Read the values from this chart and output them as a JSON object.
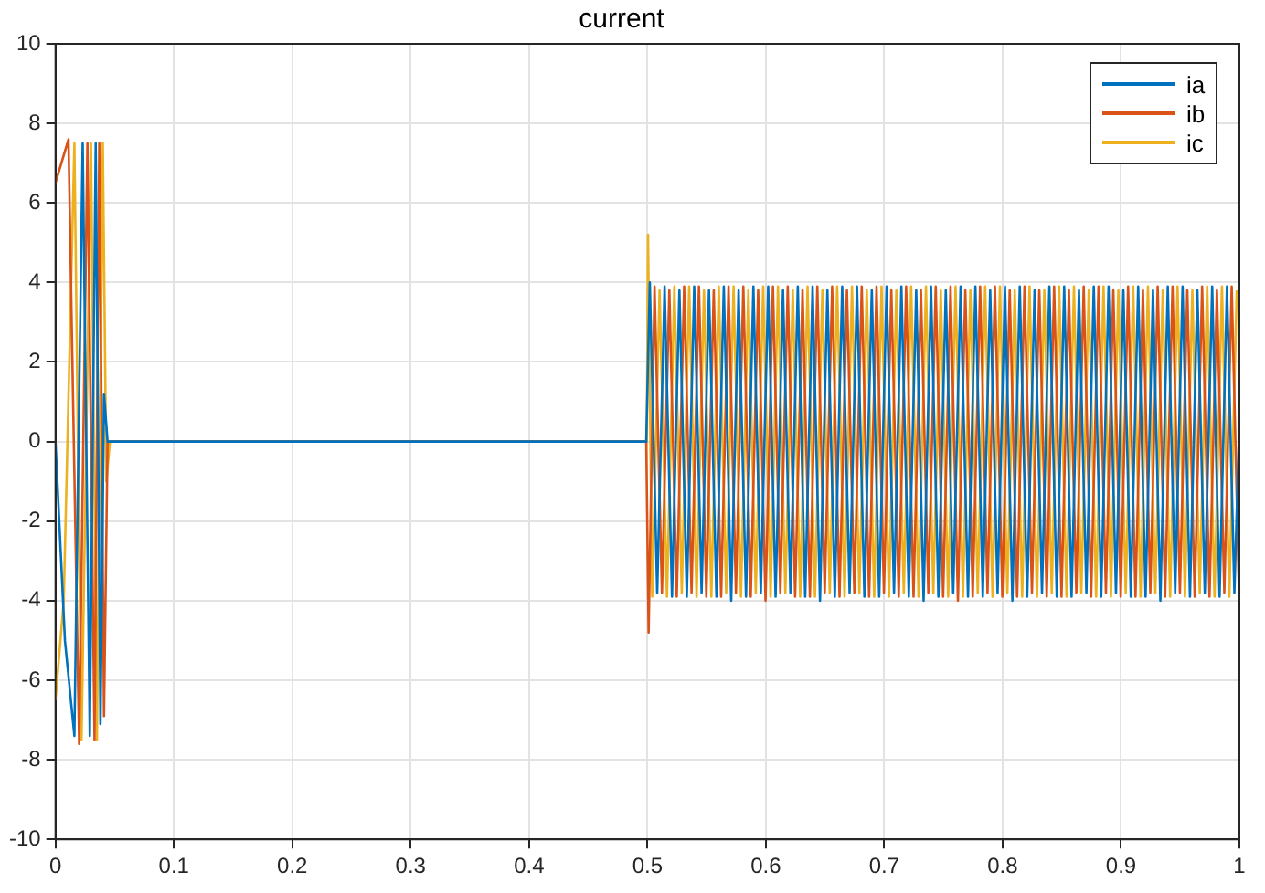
{
  "chart_data": {
    "type": "line",
    "title": "current",
    "xlim": [
      0,
      1
    ],
    "xticks": [
      0,
      0.1,
      0.2,
      0.3,
      0.4,
      0.5,
      0.6,
      0.7,
      0.8,
      0.9,
      1
    ],
    "ylim": [
      -10,
      10
    ],
    "yticks": [
      -10,
      -8,
      -6,
      -4,
      -2,
      0,
      2,
      4,
      6,
      8,
      10
    ],
    "grid": true,
    "legend": "top right",
    "marker": "none",
    "line_style": "solid",
    "series": [
      {
        "name": "ia",
        "color": "#0072bd",
        "x": [
          0,
          0.008,
          0.016,
          0.023,
          0.029,
          0.034,
          0.038,
          0.041,
          0.044,
          0.1,
          0.2,
          0.3,
          0.4,
          0.499,
          0.502,
          0.50825,
          0.5145,
          0.52075,
          0.527,
          0.53325,
          0.5395,
          0.54575,
          0.552,
          0.55825,
          0.5645,
          0.57075,
          0.577,
          0.58325,
          0.5895,
          0.59575,
          0.602,
          0.60825,
          0.6145,
          0.62075,
          0.627,
          0.63325,
          0.6395,
          0.64575,
          0.652,
          0.65825,
          0.6645,
          0.67075,
          0.677,
          0.68325,
          0.6895,
          0.69575,
          0.702,
          0.70825,
          0.7145,
          0.72075,
          0.727,
          0.73325,
          0.7395,
          0.74575,
          0.752,
          0.75825,
          0.7645,
          0.77075,
          0.777,
          0.78325,
          0.7895,
          0.79575,
          0.802,
          0.80825,
          0.8145,
          0.82075,
          0.827,
          0.83325,
          0.8395,
          0.84575,
          0.852,
          0.85825,
          0.8645,
          0.87075,
          0.877,
          0.88325,
          0.8895,
          0.89575,
          0.902,
          0.90825,
          0.9145,
          0.92075,
          0.927,
          0.93325,
          0.9395,
          0.94575,
          0.952,
          0.95825,
          0.9645,
          0.97075,
          0.977,
          0.98325,
          0.9895,
          0.99575,
          1
        ],
        "values": [
          0,
          -5,
          -7.4,
          7.5,
          -7.4,
          7.5,
          -7.1,
          1.2,
          0,
          0,
          0,
          0,
          0,
          0,
          4,
          -3.8,
          3.9,
          -3.9,
          3.8,
          -3.9,
          3.9,
          -3.8,
          3.8,
          -3.9,
          3.9,
          -4,
          3.8,
          -3.9,
          3.9,
          -3.8,
          3.9,
          -3.9,
          3.8,
          -3.8,
          3.9,
          -3.9,
          3.9,
          -4,
          3.8,
          -3.9,
          3.9,
          -3.8,
          3.9,
          -3.9,
          3.8,
          -3.9,
          3.9,
          -3.8,
          3.9,
          -3.9,
          3.8,
          -4,
          3.9,
          -3.9,
          3.8,
          -3.8,
          3.9,
          -3.9,
          3.9,
          -3.9,
          3.8,
          -3.8,
          3.9,
          -4,
          3.9,
          -3.9,
          3.8,
          -3.8,
          3.9,
          -3.9,
          3.9,
          -3.9,
          3.8,
          -3.8,
          3.9,
          -3.9,
          3.9,
          -3.8,
          3.8,
          -3.9,
          3.9,
          -3.9,
          3.8,
          -4,
          3.9,
          -3.8,
          3.9,
          -3.9,
          3.8,
          -3.8,
          3.9,
          -3.9,
          3.9,
          -3.8,
          0.5
        ]
      },
      {
        "name": "ib",
        "color": "#d95319",
        "x": [
          0,
          0.005,
          0.011,
          0.02,
          0.027,
          0.033,
          0.037,
          0.041,
          0.044,
          0.1,
          0.2,
          0.3,
          0.4,
          0.499,
          0.501,
          0.506,
          0.51225,
          0.5185,
          0.52475,
          0.531,
          0.53725,
          0.5435,
          0.54975,
          0.556,
          0.56225,
          0.5685,
          0.57475,
          0.581,
          0.58725,
          0.5935,
          0.59975,
          0.606,
          0.61225,
          0.6185,
          0.62475,
          0.631,
          0.63725,
          0.6435,
          0.64975,
          0.656,
          0.66225,
          0.6685,
          0.67475,
          0.681,
          0.68725,
          0.6935,
          0.69975,
          0.706,
          0.71225,
          0.7185,
          0.72475,
          0.731,
          0.73725,
          0.7435,
          0.74975,
          0.756,
          0.76225,
          0.7685,
          0.77475,
          0.781,
          0.78725,
          0.7935,
          0.79975,
          0.806,
          0.81225,
          0.8185,
          0.82475,
          0.831,
          0.83725,
          0.8435,
          0.84975,
          0.856,
          0.86225,
          0.8685,
          0.87475,
          0.881,
          0.88725,
          0.8935,
          0.89975,
          0.906,
          0.91225,
          0.9185,
          0.92475,
          0.931,
          0.93725,
          0.9435,
          0.94975,
          0.956,
          0.96225,
          0.9685,
          0.97475,
          0.981,
          0.98725,
          0.9935,
          0.99975
        ],
        "values": [
          6.5,
          7,
          7.6,
          -7.6,
          7.5,
          -7.5,
          7.5,
          -6.9,
          0,
          0,
          0,
          0,
          0,
          0,
          -4.8,
          3.9,
          -3.8,
          3.8,
          -3.9,
          3.9,
          -3.8,
          3.9,
          -3.9,
          3.8,
          -3.9,
          3.9,
          -3.8,
          3.9,
          -3.9,
          3.8,
          -4,
          3.9,
          -3.8,
          3.9,
          -3.9,
          3.8,
          -3.9,
          3.9,
          -3.8,
          3.9,
          -3.9,
          3.8,
          -3.8,
          3.9,
          -3.9,
          3.9,
          -3.8,
          3.8,
          -3.9,
          3.9,
          -3.9,
          3.8,
          -3.8,
          3.9,
          -3.9,
          3.9,
          -4,
          3.8,
          -3.9,
          3.9,
          -3.8,
          3.9,
          -3.9,
          3.8,
          -3.9,
          3.9,
          -3.8,
          3.8,
          -3.9,
          3.9,
          -3.9,
          3.8,
          -3.8,
          3.9,
          -3.9,
          3.9,
          -3.8,
          3.8,
          -3.9,
          3.9,
          -3.9,
          3.8,
          -3.8,
          3.9,
          -3.9,
          3.9,
          -3.8,
          3.8,
          -3.9,
          3.9,
          -3.9,
          3.8,
          -3.8,
          3.9,
          -3.9
        ]
      },
      {
        "name": "ic",
        "color": "#edb120",
        "x": [
          0,
          0.007,
          0.016,
          0.022,
          0.03,
          0.035,
          0.04,
          0.043,
          0.046,
          0.1,
          0.2,
          0.3,
          0.4,
          0.4995,
          0.5005,
          0.504,
          0.51025,
          0.5165,
          0.52275,
          0.529,
          0.53525,
          0.5415,
          0.54775,
          0.554,
          0.56025,
          0.5665,
          0.57275,
          0.579,
          0.58525,
          0.5915,
          0.59775,
          0.604,
          0.61025,
          0.6165,
          0.62275,
          0.629,
          0.63525,
          0.6415,
          0.64775,
          0.654,
          0.66025,
          0.6665,
          0.67275,
          0.679,
          0.68525,
          0.6915,
          0.69775,
          0.704,
          0.71025,
          0.7165,
          0.72275,
          0.729,
          0.73525,
          0.7415,
          0.74775,
          0.754,
          0.76025,
          0.7665,
          0.77275,
          0.779,
          0.78525,
          0.7915,
          0.79775,
          0.804,
          0.81025,
          0.8165,
          0.82275,
          0.829,
          0.83525,
          0.8415,
          0.84775,
          0.854,
          0.86025,
          0.8665,
          0.87275,
          0.879,
          0.88525,
          0.8915,
          0.89775,
          0.904,
          0.91025,
          0.9165,
          0.92275,
          0.929,
          0.93525,
          0.9415,
          0.94775,
          0.954,
          0.96025,
          0.9665,
          0.97275,
          0.979,
          0.98525,
          0.9915,
          0.99775
        ],
        "values": [
          -6.5,
          -4,
          7.5,
          -7.5,
          7.5,
          -7.5,
          7.5,
          -1,
          0,
          0,
          0,
          0,
          0,
          0,
          5.2,
          -3.9,
          3.8,
          -3.9,
          3.9,
          -3.8,
          3.9,
          -3.9,
          3.8,
          -3.9,
          3.9,
          -3.8,
          3.9,
          -3.9,
          3.8,
          -3.8,
          3.9,
          -3.9,
          3.9,
          -3.8,
          3.8,
          -3.9,
          3.9,
          -3.9,
          3.8,
          -3.8,
          3.9,
          -3.9,
          3.9,
          -3.8,
          3.8,
          -3.9,
          3.9,
          -3.9,
          3.8,
          -3.8,
          3.9,
          -3.9,
          3.9,
          -3.8,
          3.8,
          -3.9,
          3.9,
          -3.9,
          3.8,
          -3.8,
          3.9,
          -3.9,
          3.9,
          -3.8,
          3.8,
          -3.9,
          3.9,
          -3.9,
          3.8,
          -3.8,
          3.9,
          -3.9,
          3.9,
          -3.8,
          3.8,
          -3.9,
          3.9,
          -3.9,
          3.8,
          -3.8,
          3.9,
          -3.9,
          3.9,
          -3.8,
          3.8,
          -3.9,
          3.9,
          -3.9,
          3.8,
          -3.8,
          3.9,
          -3.9,
          3.9,
          -3.9,
          3.8
        ]
      }
    ]
  }
}
